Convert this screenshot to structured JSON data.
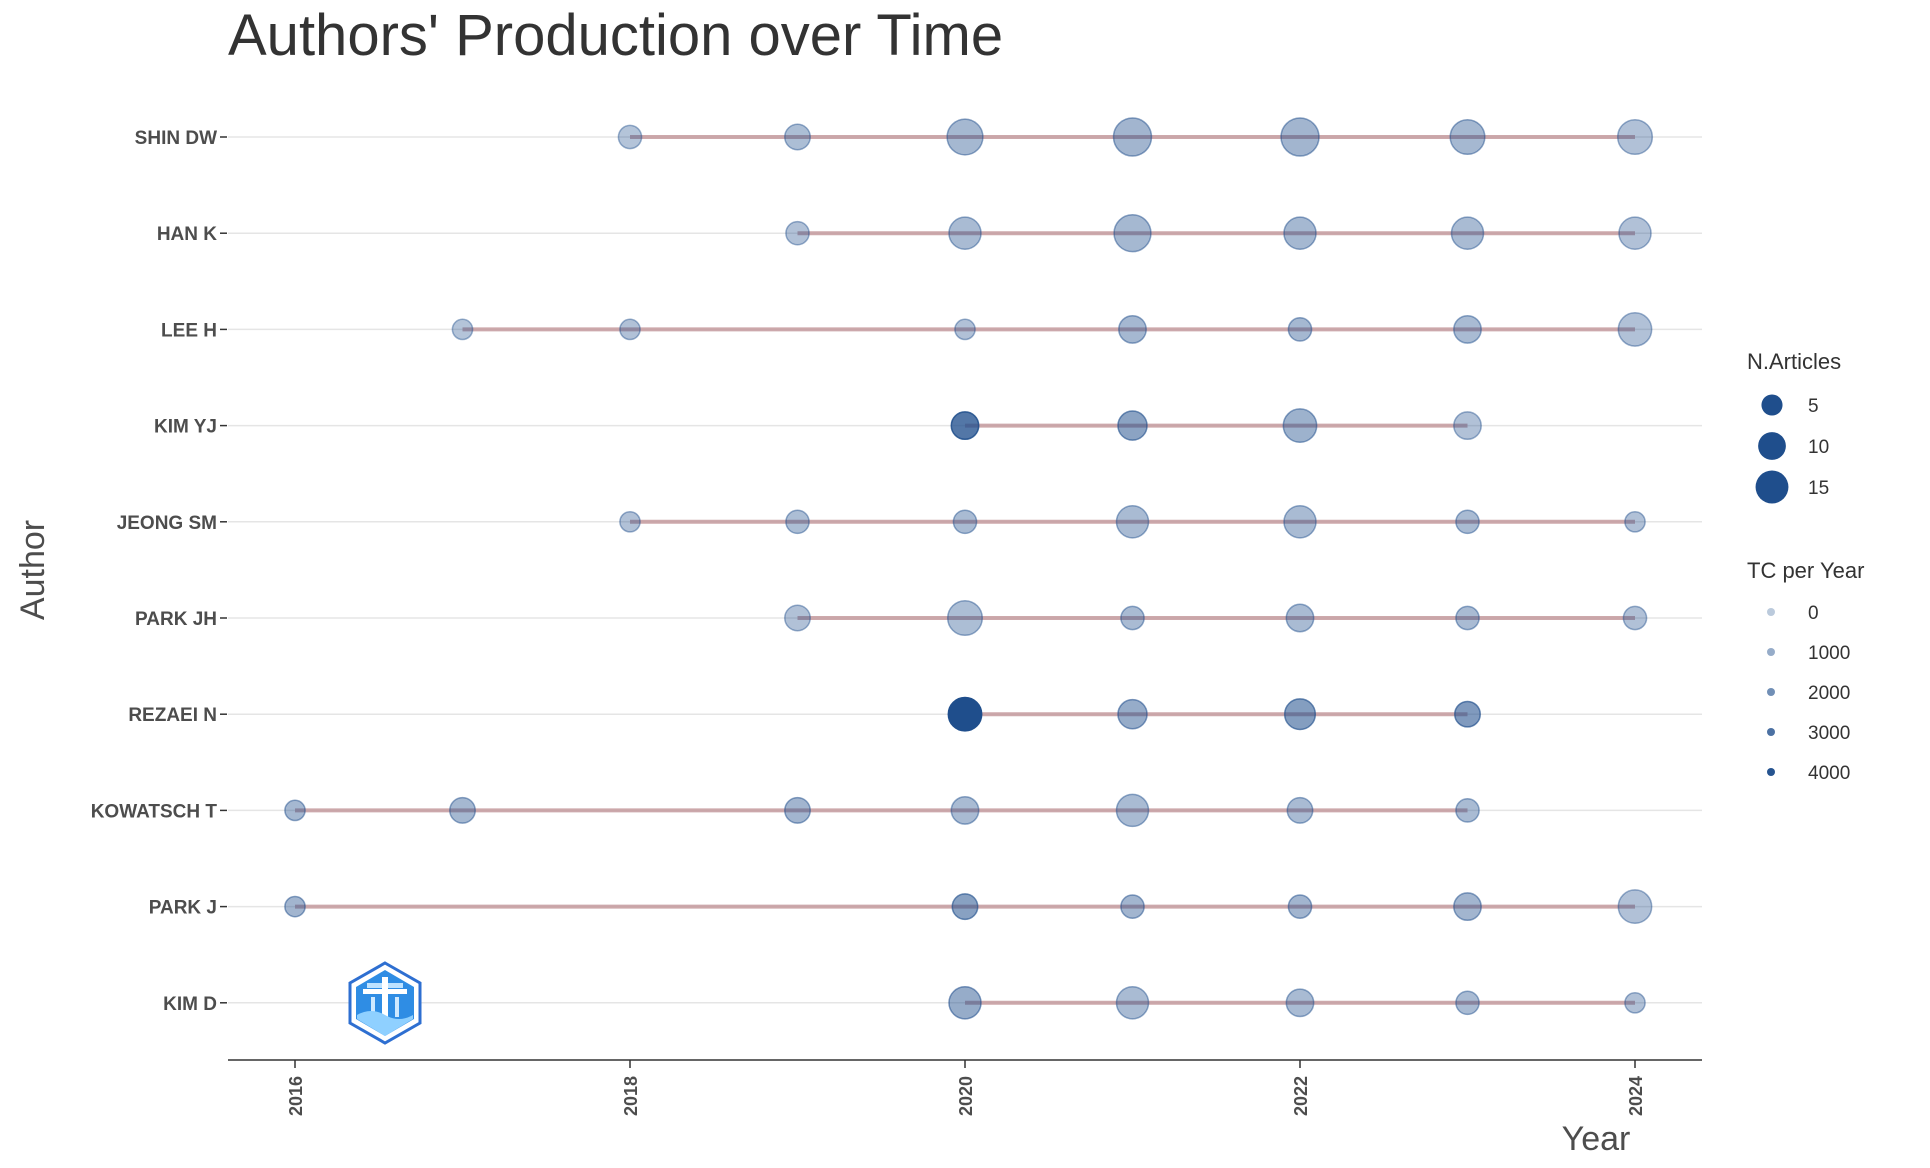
{
  "chart_data": {
    "type": "scatter",
    "title": "Authors' Production over Time",
    "xlabel": "Year",
    "ylabel": "Author",
    "xlim": [
      2015.6,
      2024.4
    ],
    "x_ticks": [
      "2016",
      "2018",
      "2020",
      "2022",
      "2024"
    ],
    "authors": [
      "SHIN DW",
      "HAN K",
      "LEE H",
      "KIM YJ",
      "JEONG SM",
      "PARK JH",
      "REZAEI N",
      "KOWATSCH T",
      "PARK J",
      "KIM D"
    ],
    "grid": true,
    "legend_position": "right",
    "colors": {
      "point": "#1f4e8c",
      "segment": "#c49a9e",
      "grid": "#e5e5e5",
      "axis": "#333333"
    },
    "series": [
      {
        "author": "SHIN DW",
        "points": [
          {
            "year": 2018,
            "articles": 2,
            "tc_per_year": 200
          },
          {
            "year": 2019,
            "articles": 3,
            "tc_per_year": 400
          },
          {
            "year": 2020,
            "articles": 10,
            "tc_per_year": 600
          },
          {
            "year": 2021,
            "articles": 12,
            "tc_per_year": 700
          },
          {
            "year": 2022,
            "articles": 12,
            "tc_per_year": 700
          },
          {
            "year": 2023,
            "articles": 9,
            "tc_per_year": 600
          },
          {
            "year": 2024,
            "articles": 9,
            "tc_per_year": 300
          }
        ]
      },
      {
        "author": "HAN K",
        "points": [
          {
            "year": 2019,
            "articles": 2,
            "tc_per_year": 300
          },
          {
            "year": 2020,
            "articles": 7,
            "tc_per_year": 500
          },
          {
            "year": 2021,
            "articles": 11,
            "tc_per_year": 600
          },
          {
            "year": 2022,
            "articles": 7,
            "tc_per_year": 600
          },
          {
            "year": 2023,
            "articles": 7,
            "tc_per_year": 500
          },
          {
            "year": 2024,
            "articles": 7,
            "tc_per_year": 300
          }
        ]
      },
      {
        "author": "LEE H",
        "points": [
          {
            "year": 2017,
            "articles": 1,
            "tc_per_year": 200
          },
          {
            "year": 2018,
            "articles": 1,
            "tc_per_year": 300
          },
          {
            "year": 2020,
            "articles": 1,
            "tc_per_year": 300
          },
          {
            "year": 2021,
            "articles": 4,
            "tc_per_year": 600
          },
          {
            "year": 2022,
            "articles": 2,
            "tc_per_year": 600
          },
          {
            "year": 2023,
            "articles": 4,
            "tc_per_year": 500
          },
          {
            "year": 2024,
            "articles": 8,
            "tc_per_year": 300
          }
        ]
      },
      {
        "author": "KIM YJ",
        "points": [
          {
            "year": 2020,
            "articles": 4,
            "tc_per_year": 2800
          },
          {
            "year": 2021,
            "articles": 5,
            "tc_per_year": 1300
          },
          {
            "year": 2022,
            "articles": 8,
            "tc_per_year": 800
          },
          {
            "year": 2023,
            "articles": 4,
            "tc_per_year": 300
          }
        ]
      },
      {
        "author": "JEONG SM",
        "points": [
          {
            "year": 2018,
            "articles": 1,
            "tc_per_year": 300
          },
          {
            "year": 2019,
            "articles": 2,
            "tc_per_year": 400
          },
          {
            "year": 2020,
            "articles": 2,
            "tc_per_year": 500
          },
          {
            "year": 2021,
            "articles": 7,
            "tc_per_year": 500
          },
          {
            "year": 2022,
            "articles": 7,
            "tc_per_year": 500
          },
          {
            "year": 2023,
            "articles": 2,
            "tc_per_year": 500
          },
          {
            "year": 2024,
            "articles": 1,
            "tc_per_year": 300
          }
        ]
      },
      {
        "author": "PARK JH",
        "points": [
          {
            "year": 2019,
            "articles": 3,
            "tc_per_year": 300
          },
          {
            "year": 2020,
            "articles": 9,
            "tc_per_year": 400
          },
          {
            "year": 2021,
            "articles": 2,
            "tc_per_year": 500
          },
          {
            "year": 2022,
            "articles": 4,
            "tc_per_year": 500
          },
          {
            "year": 2023,
            "articles": 2,
            "tc_per_year": 500
          },
          {
            "year": 2024,
            "articles": 2,
            "tc_per_year": 300
          }
        ]
      },
      {
        "author": "REZAEI N",
        "points": [
          {
            "year": 2020,
            "articles": 8,
            "tc_per_year": 4200
          },
          {
            "year": 2021,
            "articles": 5,
            "tc_per_year": 1000
          },
          {
            "year": 2022,
            "articles": 6,
            "tc_per_year": 1500
          },
          {
            "year": 2023,
            "articles": 3,
            "tc_per_year": 1600
          }
        ]
      },
      {
        "author": "KOWATSCH T",
        "points": [
          {
            "year": 2016,
            "articles": 1,
            "tc_per_year": 600
          },
          {
            "year": 2017,
            "articles": 3,
            "tc_per_year": 600
          },
          {
            "year": 2019,
            "articles": 3,
            "tc_per_year": 700
          },
          {
            "year": 2020,
            "articles": 4,
            "tc_per_year": 500
          },
          {
            "year": 2021,
            "articles": 7,
            "tc_per_year": 500
          },
          {
            "year": 2022,
            "articles": 3,
            "tc_per_year": 500
          },
          {
            "year": 2023,
            "articles": 2,
            "tc_per_year": 500
          }
        ]
      },
      {
        "author": "PARK J",
        "points": [
          {
            "year": 2016,
            "articles": 1,
            "tc_per_year": 700
          },
          {
            "year": 2020,
            "articles": 3,
            "tc_per_year": 1400
          },
          {
            "year": 2021,
            "articles": 2,
            "tc_per_year": 700
          },
          {
            "year": 2022,
            "articles": 2,
            "tc_per_year": 700
          },
          {
            "year": 2023,
            "articles": 4,
            "tc_per_year": 700
          },
          {
            "year": 2024,
            "articles": 8,
            "tc_per_year": 300
          }
        ]
      },
      {
        "author": "KIM D",
        "points": [
          {
            "year": 2020,
            "articles": 7,
            "tc_per_year": 1000
          },
          {
            "year": 2021,
            "articles": 7,
            "tc_per_year": 500
          },
          {
            "year": 2022,
            "articles": 4,
            "tc_per_year": 500
          },
          {
            "year": 2023,
            "articles": 2,
            "tc_per_year": 500
          },
          {
            "year": 2024,
            "articles": 1,
            "tc_per_year": 300
          }
        ]
      }
    ],
    "legend": {
      "size": {
        "title": "N.Articles",
        "values": [
          5,
          10,
          15
        ],
        "labels": [
          "5",
          "10",
          "15"
        ]
      },
      "alpha": {
        "title": "TC per Year",
        "values": [
          0,
          1000,
          2000,
          3000,
          4000
        ],
        "labels": [
          "0",
          "1000",
          "2000",
          "3000",
          "4000"
        ]
      }
    }
  },
  "icons": {
    "logo": "hexagon-tower-logo-icon"
  }
}
